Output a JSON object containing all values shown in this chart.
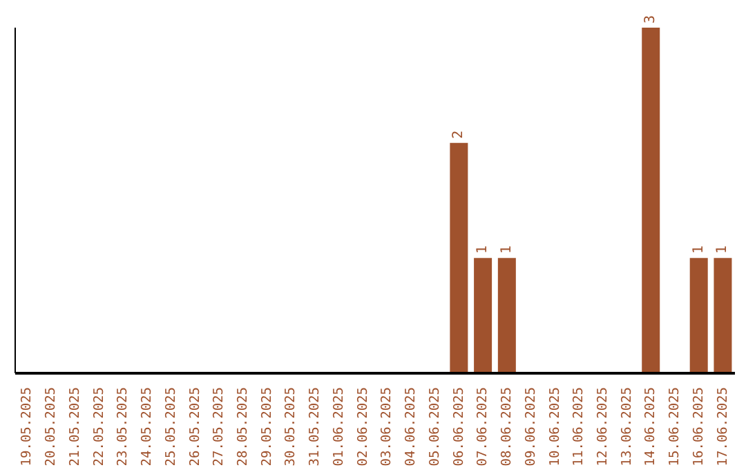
{
  "chart_data": {
    "type": "bar",
    "categories": [
      "19.05.2025",
      "20.05.2025",
      "21.05.2025",
      "22.05.2025",
      "23.05.2025",
      "24.05.2025",
      "25.05.2025",
      "26.05.2025",
      "27.05.2025",
      "28.05.2025",
      "29.05.2025",
      "30.05.2025",
      "31.05.2025",
      "01.06.2025",
      "02.06.2025",
      "03.06.2025",
      "04.06.2025",
      "05.06.2025",
      "06.06.2025",
      "07.06.2025",
      "08.06.2025",
      "09.06.2025",
      "10.06.2025",
      "11.06.2025",
      "12.06.2025",
      "13.06.2025",
      "14.06.2025",
      "15.06.2025",
      "16.06.2025",
      "17.06.2025"
    ],
    "values": [
      null,
      null,
      null,
      null,
      null,
      null,
      null,
      null,
      null,
      null,
      null,
      null,
      null,
      null,
      null,
      null,
      null,
      null,
      2,
      1,
      1,
      null,
      null,
      null,
      null,
      null,
      3,
      null,
      1,
      1
    ],
    "value_labels": [
      null,
      null,
      null,
      null,
      null,
      null,
      null,
      null,
      null,
      null,
      null,
      null,
      null,
      null,
      null,
      null,
      null,
      null,
      "2",
      "1",
      "1",
      null,
      null,
      null,
      null,
      null,
      "3",
      null,
      "1",
      "1"
    ],
    "color": "#a0522d",
    "grid": false,
    "legend": false,
    "tick_labels": "x"
  }
}
